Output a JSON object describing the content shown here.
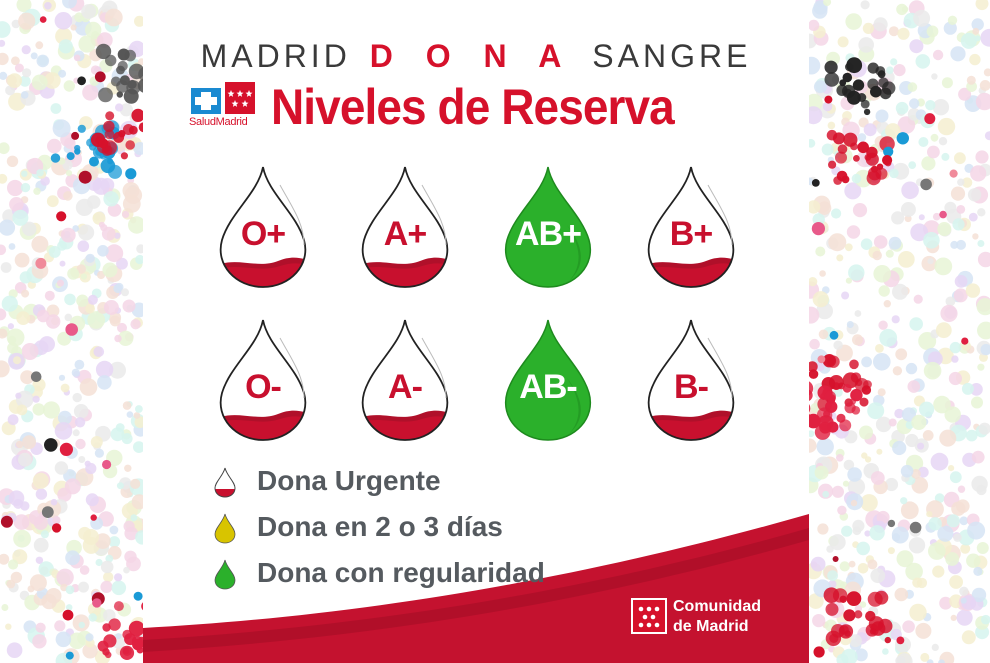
{
  "header": {
    "line1_pre": "MADRID",
    "line1_bold": "D O N A",
    "line1_post": "SANGRE",
    "title": "Niveles de Reserva",
    "salud_logo_text": "SaludMadrid"
  },
  "blood_types": [
    {
      "label": "O+",
      "status": "Dona Urgente"
    },
    {
      "label": "A+",
      "status": "Dona Urgente"
    },
    {
      "label": "AB+",
      "status": "Dona con regularidad"
    },
    {
      "label": "B+",
      "status": "Dona Urgente"
    },
    {
      "label": "O-",
      "status": "Dona Urgente"
    },
    {
      "label": "A-",
      "status": "Dona Urgente"
    },
    {
      "label": "AB-",
      "status": "Dona con regularidad"
    },
    {
      "label": "B-",
      "status": "Dona Urgente"
    }
  ],
  "legend": [
    {
      "label": "Dona Urgente",
      "icon": "red-drop-icon"
    },
    {
      "label": "Dona en 2 o 3 días",
      "icon": "yellow-drop-icon"
    },
    {
      "label": "Dona con regularidad",
      "icon": "green-drop-icon"
    }
  ],
  "footer": {
    "line1": "Comunidad",
    "line2": "de Madrid"
  },
  "colors": {
    "red": "#d6112b",
    "dark_red": "#b0102a",
    "green": "#2bb02b",
    "yellow": "#d8c400",
    "text_gray": "#555a5f"
  }
}
